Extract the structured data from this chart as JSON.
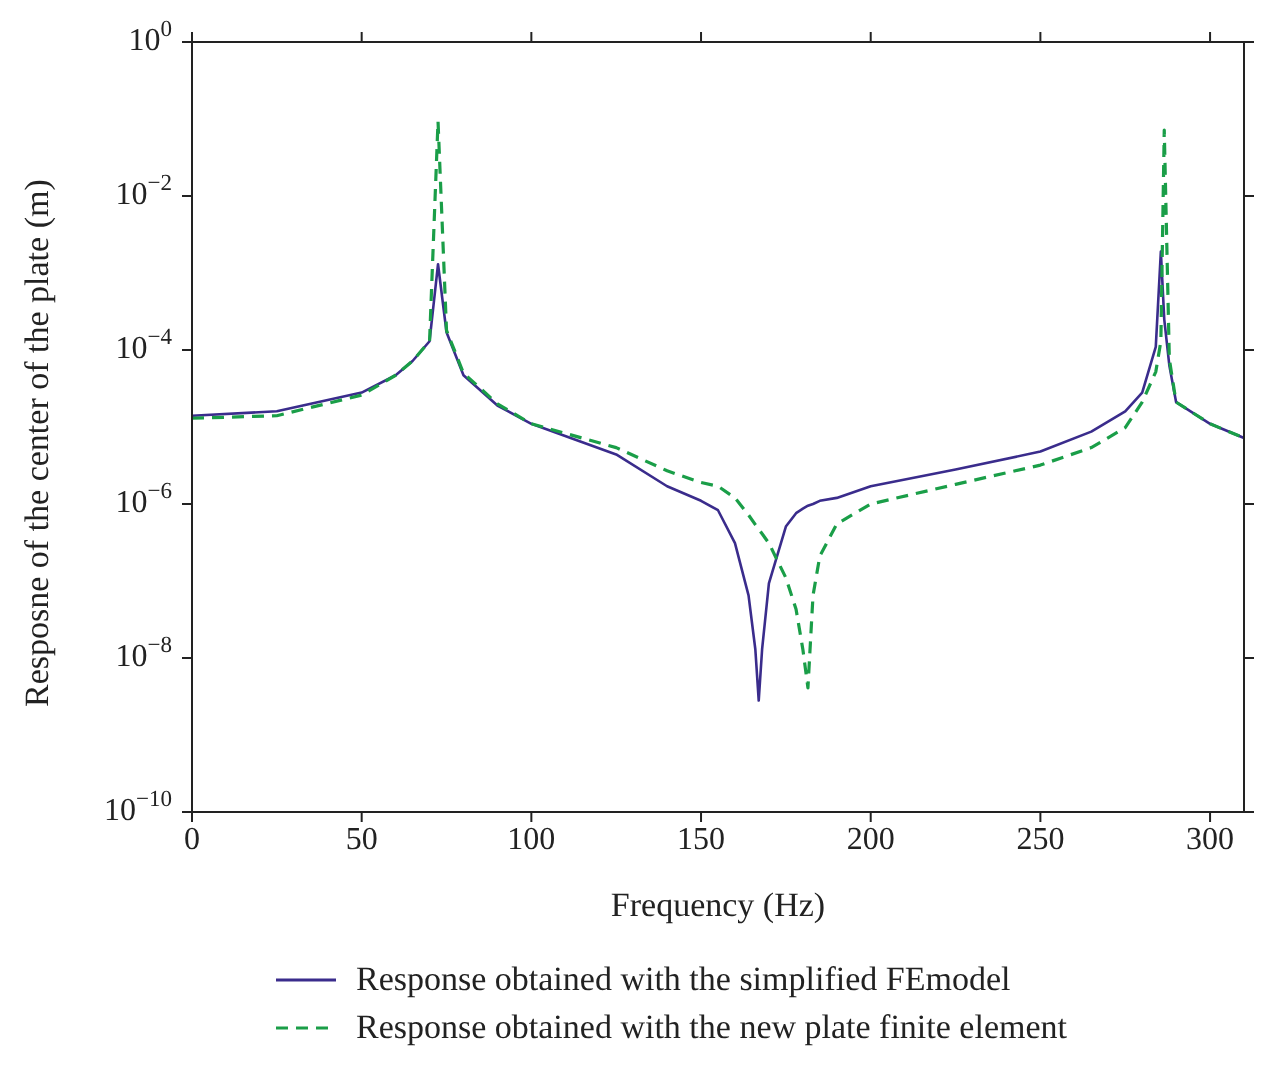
{
  "chart_data": {
    "type": "line",
    "xlabel": "Frequency (Hz)",
    "ylabel": "Resposne of the center of the plate (m)",
    "x": [
      0,
      25,
      50,
      60,
      65,
      70,
      72.5,
      75,
      80,
      90,
      100,
      125,
      140,
      150,
      155,
      160,
      164,
      166,
      167,
      168,
      170,
      175,
      178,
      180,
      181.5,
      183,
      185,
      190,
      200,
      225,
      250,
      265,
      275,
      280,
      284,
      285.5,
      286.5,
      288,
      290,
      300,
      310
    ],
    "series": [
      {
        "name": "Response obtained with the simplified FEmodel",
        "color": "#3a2c8c",
        "line_style": "solid",
        "values": [
          1.4e-05,
          1.6e-05,
          2.8e-05,
          4.7e-05,
          7.2e-05,
          0.00013,
          0.0013,
          0.00017,
          4.7e-05,
          1.9e-05,
          1.1e-05,
          4.4e-06,
          1.7e-06,
          1.1e-06,
          8.3e-07,
          3.1e-07,
          6.5e-08,
          1.3e-08,
          2.8e-09,
          1.3e-08,
          9.3e-08,
          5.1e-07,
          7.6e-07,
          8.7e-07,
          9.5e-07,
          1e-06,
          1.1e-06,
          1.2e-06,
          1.7e-06,
          2.8e-06,
          4.8e-06,
          8.7e-06,
          1.6e-05,
          2.8e-05,
          0.00011,
          0.0019,
          0.00025,
          6.3e-05,
          2.1e-05,
          1.1e-05,
          7.2e-06
        ]
      },
      {
        "name": "Response obtained with the new plate finite element",
        "color": "#1a9e48",
        "line_style": "dashed",
        "values": [
          1.3e-05,
          1.4e-05,
          2.6e-05,
          4.7e-05,
          7.2e-05,
          0.00013,
          0.093,
          0.00018,
          5e-05,
          2e-05,
          1.1e-05,
          5.4e-06,
          2.7e-06,
          1.9e-06,
          1.7e-06,
          1.2e-06,
          7.2e-07,
          5.4e-07,
          4.7e-07,
          4.1e-07,
          3.1e-07,
          1.1e-07,
          4.3e-08,
          1.3e-08,
          4.1e-09,
          6.5e-08,
          2.1e-07,
          5.5e-07,
          1e-06,
          1.8e-06,
          3.2e-06,
          5.4e-06,
          9.8e-06,
          2.1e-05,
          5.2e-05,
          0.00013,
          0.072,
          7.6e-05,
          2.1e-05,
          1.1e-05,
          7.2e-06
        ]
      }
    ],
    "xlim": [
      0,
      310
    ],
    "xticks": [
      0,
      50,
      100,
      150,
      200,
      250,
      300
    ],
    "log": "y",
    "ylim": [
      1e-10,
      1
    ],
    "yticks": [
      {
        "value": 1e-10,
        "label": "10$^{−10}$"
      },
      {
        "value": 1e-08,
        "label": "10$^{−8}$"
      },
      {
        "value": 1e-06,
        "label": "10$^{−6}$"
      },
      {
        "value": 0.0001,
        "label": "10$^{−4}$"
      },
      {
        "value": 0.01,
        "label": "10$^{−2}$"
      },
      {
        "value": 1,
        "label": "10$^{0}$"
      }
    ],
    "grid": false,
    "legend": "bottom",
    "marker": "none"
  }
}
